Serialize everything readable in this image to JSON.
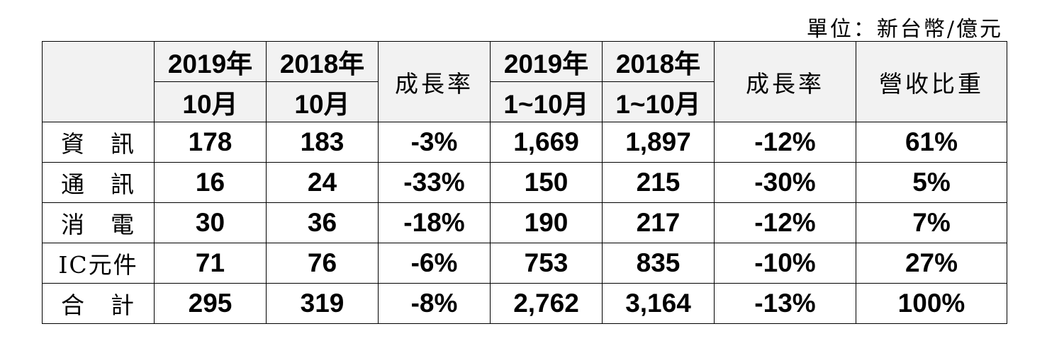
{
  "unit_note": "單位：新台幣/億元",
  "table": {
    "header_top": [
      "2019年",
      "2018年",
      "成長率",
      "2019年",
      "2018年",
      "成長率",
      "營收比重"
    ],
    "header_sub": [
      "10月",
      "10月",
      "1~10月",
      "1~10月"
    ],
    "rows": [
      [
        "資　訊",
        "178",
        "183",
        "-3%",
        "1,669",
        "1,897",
        "-12%",
        "61%"
      ],
      [
        "通　訊",
        "16",
        "24",
        "-33%",
        "150",
        "215",
        "-30%",
        "5%"
      ],
      [
        "消　電",
        "30",
        "36",
        "-18%",
        "190",
        "217",
        "-12%",
        "7%"
      ],
      [
        "IC元件",
        "71",
        "76",
        "-6%",
        "753",
        "835",
        "-10%",
        "27%"
      ],
      [
        "合　計",
        "295",
        "319",
        "-8%",
        "2,762",
        "3,164",
        "-13%",
        "100%"
      ]
    ]
  }
}
